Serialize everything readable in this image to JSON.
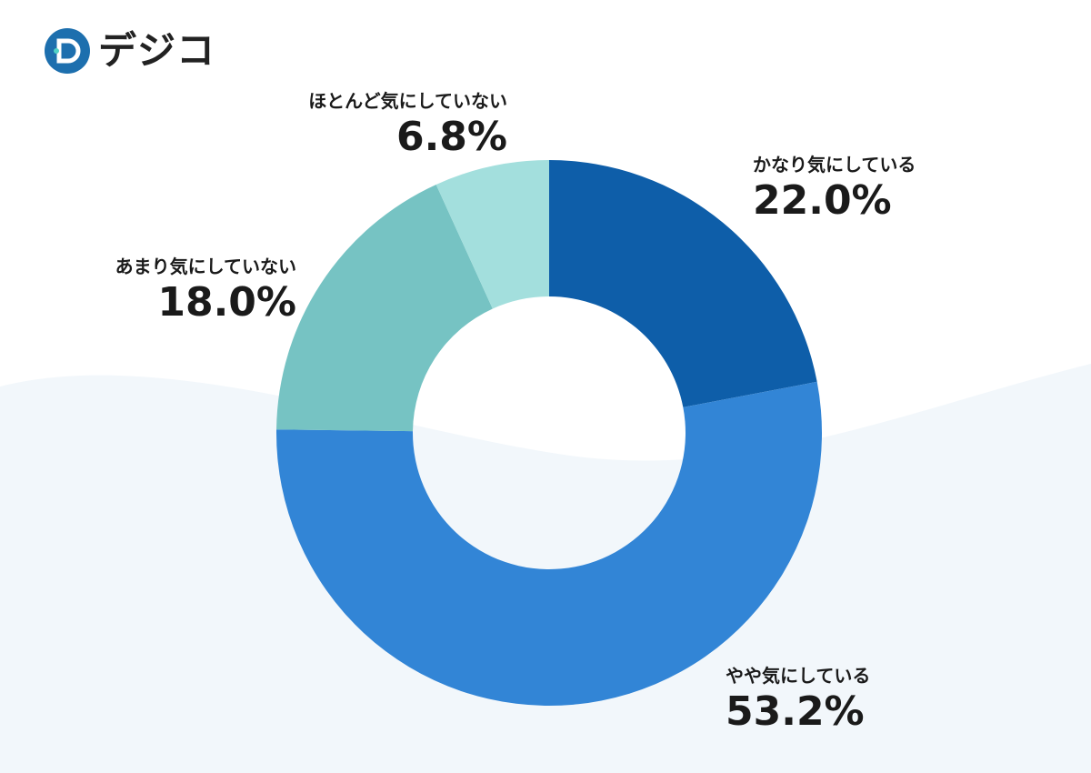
{
  "logo": {
    "text": "デジコ",
    "icon": "digiko-logo-icon"
  },
  "colors": {
    "background_wave": "#f2f7fb",
    "slice_1": "#0e5ea9",
    "slice_2": "#3285d6",
    "slice_3": "#76c3c3",
    "slice_4": "#a3dfdd"
  },
  "chart_data": {
    "type": "pie",
    "style": "donut",
    "title": "",
    "categories": [
      "かなり気にしている",
      "やや気にしている",
      "あまり気にしていない",
      "ほとんど気にしていない"
    ],
    "values": [
      22.0,
      53.2,
      18.0,
      6.8
    ],
    "value_labels": [
      "22.0%",
      "53.2%",
      "18.0%",
      "6.8%"
    ],
    "unit": "%",
    "legend": "none"
  }
}
